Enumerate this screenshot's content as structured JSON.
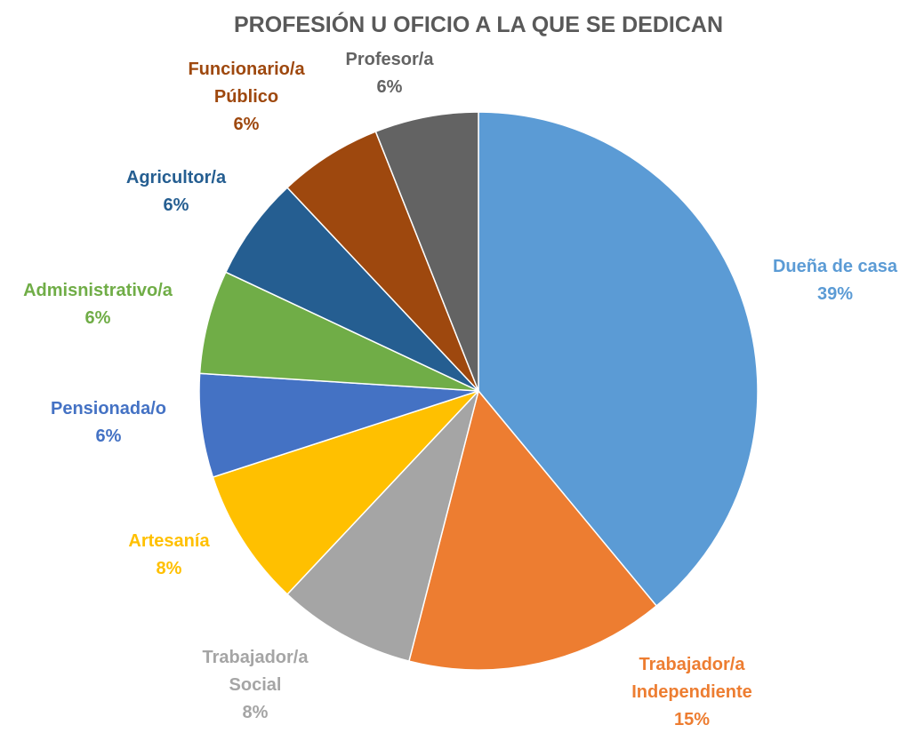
{
  "chart_data": {
    "type": "pie",
    "title": "PROFESIÓN U OFICIO A LA QUE SE DEDICAN",
    "categories": [
      "Dueña de casa",
      "Trabajador/a Independiente",
      "Trabajador/a Social",
      "Artesanía",
      "Pensionada/o",
      "Admisnistrativo/a",
      "Agricultor/a",
      "Funcionario/a Público",
      "Profesor/a"
    ],
    "values": [
      39,
      15,
      8,
      8,
      6,
      6,
      6,
      6,
      6
    ],
    "value_labels": [
      "39%",
      "15%",
      "8%",
      "8%",
      "6%",
      "6%",
      "6%",
      "6%",
      "6%"
    ],
    "colors": [
      "#5b9bd5",
      "#ed7d31",
      "#a5a5a5",
      "#ffc000",
      "#4472c4",
      "#70ad47",
      "#255e91",
      "#9e480e",
      "#636363"
    ]
  }
}
